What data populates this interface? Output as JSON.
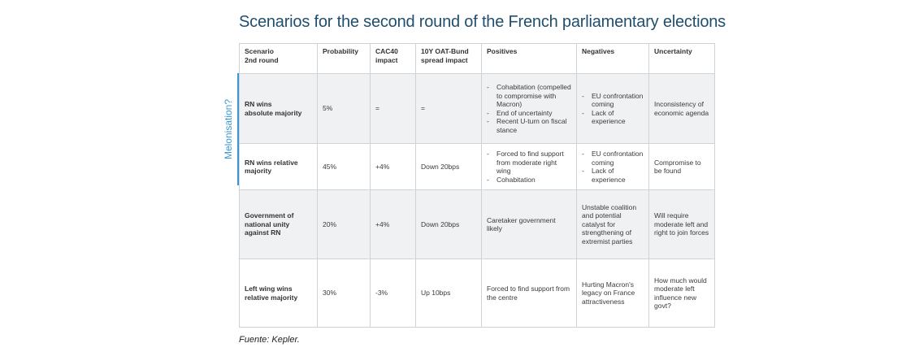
{
  "title": "Scenarios for the second round of the French parliamentary elections",
  "side_label": "Melonisation?",
  "headers": {
    "scenario_1": "Scenario",
    "scenario_2": "2nd round",
    "probability": "Probability",
    "cac40_1": "CAC40",
    "cac40_2": "impact",
    "spread_1": "10Y OAT-Bund",
    "spread_2": "spread impact",
    "positives": "Positives",
    "negatives": "Negatives",
    "uncertainty": "Uncertainty"
  },
  "rows": [
    {
      "label_1": "RN wins",
      "label_2": "absolute majority",
      "probability": "5%",
      "cac40": "=",
      "spread": "=",
      "positives": [
        "Cohabitation (compelled to compromise with Macron)",
        "End of uncertainty",
        "Recent U-turn on fiscal stance"
      ],
      "negatives": [
        "EU confrontation coming",
        "Lack of experience"
      ],
      "uncertainty": "Inconsistency of economic agenda"
    },
    {
      "label_1": "RN wins relative",
      "label_2": "majority",
      "probability": "45%",
      "cac40": "+4%",
      "spread": "Down 20bps",
      "positives": [
        "Forced to find support from moderate right wing",
        "Cohabitation"
      ],
      "negatives": [
        "EU confrontation coming",
        "Lack of experience"
      ],
      "uncertainty": "Compromise to be found"
    },
    {
      "label_1": "Government of",
      "label_2": "national unity",
      "label_3": "against RN",
      "probability": "20%",
      "cac40": "+4%",
      "spread": "Down 20bps",
      "positives_text": "Caretaker government likely",
      "negatives_text": "Unstable coalition and potential catalyst for strengthening of extremist parties",
      "uncertainty": "Will require moderate left and right to join forces"
    },
    {
      "label_1": "Left wing wins",
      "label_2": "relative majority",
      "probability": "30%",
      "cac40": "-3%",
      "spread": "Up 10bps",
      "positives_text": "Forced to find support from the centre",
      "negatives_text": "Hurting Macron's legacy on France attractiveness",
      "uncertainty": "How much would moderate left influence new govt?"
    }
  ],
  "source": "Fuente: Kepler."
}
